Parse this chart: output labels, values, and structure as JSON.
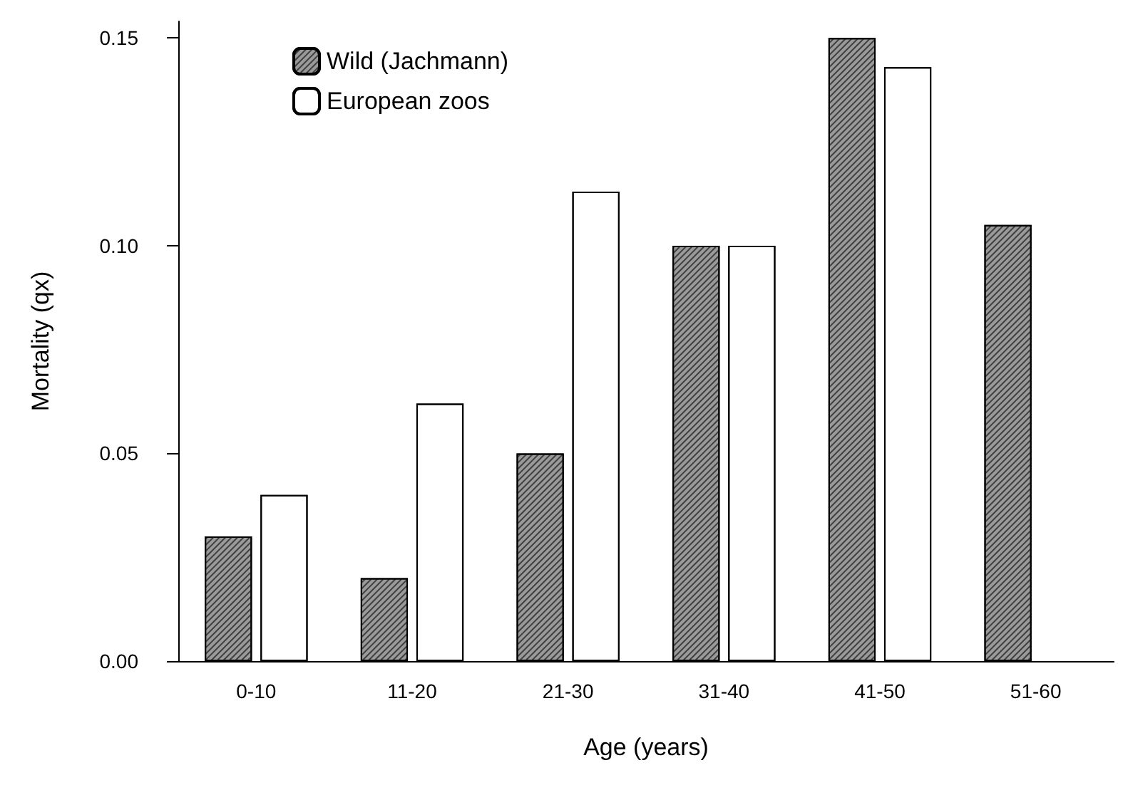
{
  "chart_data": {
    "type": "bar",
    "xlabel": "Age (years)",
    "ylabel": "Mortality (qx)",
    "categories": [
      "0-10",
      "11-20",
      "21-30",
      "31-40",
      "41-50",
      "51-60"
    ],
    "series": [
      {
        "name": "Wild (Jachmann)",
        "color": "#9a9a9a",
        "values": [
          0.03,
          0.02,
          0.05,
          0.1,
          0.15,
          0.105
        ]
      },
      {
        "name": "European zoos",
        "color": "#ffffff",
        "values": [
          0.04,
          0.062,
          0.113,
          0.1,
          0.143,
          null
        ]
      }
    ],
    "ylim": [
      0,
      0.154
    ],
    "yticks": [
      {
        "value": 0,
        "label": "0.00"
      },
      0.05,
      {
        "value": 0.1,
        "label": "0.10"
      },
      0.15
    ],
    "grid": false,
    "legend": "top left"
  }
}
